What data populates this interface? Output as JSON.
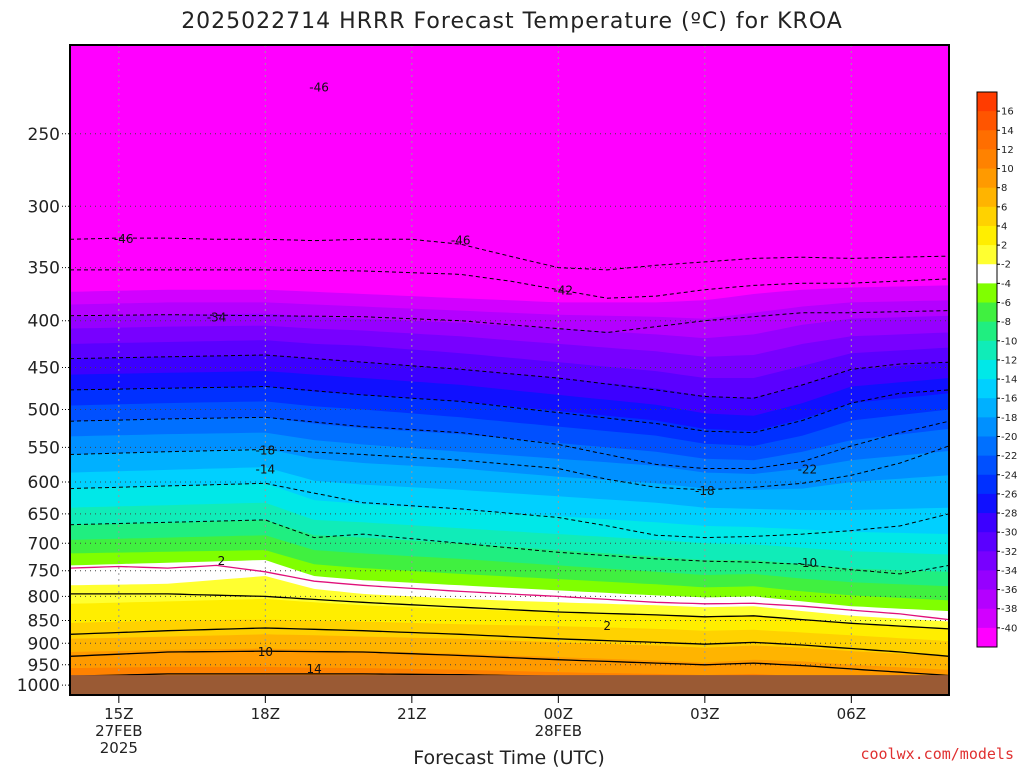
{
  "chart_data": {
    "type": "heatmap",
    "title": "2025022714 HRRR Forecast Temperature (ºC) for KROA",
    "xlabel": "Forecast Time (UTC)",
    "ylabel": "",
    "credit": "coolwx.com/models",
    "x_ticks": [
      {
        "hour": 15,
        "lines": [
          "15Z",
          "27FEB",
          "2025"
        ]
      },
      {
        "hour": 18,
        "lines": [
          "18Z"
        ]
      },
      {
        "hour": 21,
        "lines": [
          "21Z"
        ]
      },
      {
        "hour": 24,
        "lines": [
          "00Z",
          "28FEB"
        ]
      },
      {
        "hour": 27,
        "lines": [
          "03Z"
        ]
      },
      {
        "hour": 30,
        "lines": [
          "06Z"
        ]
      }
    ],
    "x_range_hours": [
      14,
      32
    ],
    "y_ticks": [
      250,
      300,
      350,
      400,
      450,
      500,
      550,
      600,
      650,
      700,
      750,
      800,
      850,
      900,
      950,
      1000
    ],
    "y_range_hpa": [
      200,
      1025
    ],
    "y_scale": "log-pressure",
    "ground_level_hpa": 975,
    "colorbar": {
      "levels": [
        16,
        14,
        12,
        10,
        8,
        6,
        4,
        2,
        -2,
        -4,
        -6,
        -8,
        -10,
        -12,
        -14,
        -16,
        -18,
        -20,
        -22,
        -24,
        -26,
        -28,
        -30,
        -32,
        -34,
        -36,
        -38,
        -40
      ],
      "colors": [
        "#ff3c00",
        "#ff5500",
        "#ff6e00",
        "#ff8200",
        "#ff9a00",
        "#ffb400",
        "#ffd200",
        "#ffee00",
        "#ffff30",
        "#ffffff",
        "#80ff00",
        "#40f040",
        "#20ee80",
        "#10ecb8",
        "#00e8e8",
        "#00d0ff",
        "#00b0ff",
        "#0090ff",
        "#0070ff",
        "#0050ff",
        "#0030ff",
        "#1010ff",
        "#3c00ff",
        "#5a00ff",
        "#7800ff",
        "#9600ff",
        "#b400ff",
        "#d200ff",
        "#ff00ff"
      ]
    },
    "profile_hours": [
      14,
      16,
      18,
      19,
      20,
      22,
      24,
      26,
      27,
      28,
      29,
      30,
      32
    ],
    "profile_values_hpa": [
      {
        "temp": 12,
        "p": [
          980,
          980,
          980,
          982,
          983,
          985,
          988,
          992,
          995,
          995,
          1000,
          1005,
          1010
        ]
      },
      {
        "temp": 10,
        "p": [
          958,
          955,
          955,
          957,
          958,
          962,
          968,
          972,
          975,
          972,
          978,
          985,
          995
        ]
      },
      {
        "temp": 8,
        "p": [
          920,
          915,
          912,
          915,
          918,
          924,
          932,
          940,
          945,
          938,
          942,
          950,
          962
        ]
      },
      {
        "temp": 6,
        "p": [
          890,
          885,
          880,
          882,
          885,
          890,
          898,
          905,
          910,
          905,
          910,
          918,
          930
        ]
      },
      {
        "temp": 4,
        "p": [
          855,
          850,
          848,
          850,
          852,
          858,
          862,
          868,
          872,
          870,
          876,
          882,
          895
        ]
      },
      {
        "temp": 2,
        "p": [
          815,
          810,
          805,
          812,
          818,
          826,
          832,
          838,
          842,
          840,
          848,
          856,
          868
        ]
      },
      {
        "temp": -2,
        "p": [
          778,
          775,
          760,
          785,
          795,
          805,
          812,
          818,
          822,
          820,
          830,
          840,
          852
        ]
      },
      {
        "temp": -4,
        "p": [
          740,
          735,
          730,
          760,
          768,
          778,
          788,
          798,
          802,
          800,
          810,
          820,
          830
        ]
      },
      {
        "temp": -6,
        "p": [
          718,
          715,
          712,
          738,
          745,
          756,
          766,
          776,
          782,
          780,
          790,
          798,
          808
        ]
      },
      {
        "temp": -8,
        "p": [
          694,
          690,
          686,
          712,
          718,
          728,
          740,
          752,
          758,
          756,
          765,
          772,
          780
        ]
      },
      {
        "temp": -10,
        "p": [
          668,
          665,
          660,
          686,
          690,
          700,
          712,
          724,
          730,
          730,
          738,
          746,
          752
        ]
      },
      {
        "temp": -12,
        "p": [
          640,
          636,
          632,
          660,
          664,
          674,
          684,
          694,
          700,
          702,
          708,
          714,
          720
        ]
      },
      {
        "temp": -14,
        "p": [
          610,
          606,
          602,
          628,
          634,
          644,
          654,
          664,
          670,
          672,
          676,
          680,
          684
        ]
      },
      {
        "temp": -16,
        "p": [
          586,
          582,
          578,
          598,
          604,
          612,
          622,
          632,
          640,
          642,
          644,
          644,
          640
        ]
      },
      {
        "temp": -18,
        "p": [
          560,
          556,
          552,
          566,
          572,
          580,
          592,
          602,
          610,
          612,
          610,
          600,
          590
        ]
      },
      {
        "temp": -20,
        "p": [
          535,
          532,
          530,
          540,
          546,
          556,
          566,
          576,
          586,
          588,
          580,
          568,
          555
        ]
      },
      {
        "temp": -22,
        "p": [
          515,
          512,
          510,
          518,
          524,
          532,
          544,
          556,
          566,
          568,
          556,
          540,
          525
        ]
      },
      {
        "temp": -24,
        "p": [
          495,
          492,
          490,
          496,
          500,
          510,
          522,
          534,
          545,
          548,
          534,
          514,
          500
        ]
      },
      {
        "temp": -26,
        "p": [
          476,
          474,
          472,
          478,
          482,
          490,
          502,
          514,
          525,
          528,
          512,
          492,
          480
        ]
      },
      {
        "temp": -28,
        "p": [
          458,
          456,
          454,
          458,
          462,
          470,
          482,
          494,
          505,
          508,
          492,
          472,
          462
        ]
      },
      {
        "temp": -30,
        "p": [
          440,
          438,
          436,
          440,
          444,
          452,
          462,
          474,
          484,
          486,
          470,
          452,
          444
        ]
      },
      {
        "temp": -32,
        "p": [
          424,
          422,
          420,
          424,
          426,
          434,
          444,
          454,
          462,
          462,
          448,
          434,
          428
        ]
      },
      {
        "temp": -34,
        "p": [
          408,
          406,
          405,
          408,
          410,
          416,
          424,
          432,
          438,
          436,
          424,
          416,
          412
        ]
      },
      {
        "temp": -36,
        "p": [
          396,
          394,
          393,
          396,
          398,
          402,
          408,
          414,
          418,
          414,
          404,
          398,
          395
        ]
      },
      {
        "temp": -38,
        "p": [
          384,
          382,
          382,
          384,
          386,
          390,
          394,
          396,
          398,
          392,
          386,
          382,
          380
        ]
      },
      {
        "temp": -40,
        "p": [
          372,
          370,
          370,
          372,
          374,
          378,
          382,
          382,
          380,
          374,
          370,
          368,
          366
        ]
      }
    ],
    "dashed_isotherms": [
      {
        "temp": -46,
        "hours": [
          14,
          15,
          16,
          17,
          18,
          19,
          20,
          21,
          22,
          23,
          24,
          25,
          26,
          27,
          28,
          29,
          30,
          31,
          32
        ],
        "p": [
          326,
          325,
          325,
          326,
          326,
          327,
          326,
          326,
          330,
          340,
          350,
          352,
          348,
          345,
          342,
          341,
          342,
          341,
          340
        ]
      },
      {
        "temp": -42,
        "hours": [
          14,
          16,
          18,
          20,
          22,
          23,
          24,
          25,
          26,
          27,
          28,
          29,
          30,
          31,
          32
        ],
        "p": [
          352,
          352,
          352,
          353,
          356,
          362,
          370,
          378,
          376,
          370,
          366,
          364,
          364,
          362,
          360
        ]
      },
      {
        "temp": -34,
        "hours": [
          14,
          16,
          18,
          20,
          22,
          24,
          25,
          26,
          27,
          28,
          29,
          30,
          31,
          32
        ],
        "p": [
          395,
          394,
          395,
          396,
          400,
          408,
          412,
          406,
          400,
          396,
          392,
          392,
          391,
          390
        ]
      },
      {
        "temp": -18,
        "hours": [
          14,
          16,
          18,
          20,
          22,
          24,
          25,
          26,
          27,
          28,
          29,
          30,
          31,
          32
        ],
        "p": [
          560,
          556,
          553,
          560,
          568,
          580,
          596,
          608,
          612,
          608,
          602,
          590,
          572,
          548
        ]
      },
      {
        "temp": -14,
        "hours": [
          14,
          16,
          18,
          20,
          22,
          24,
          25,
          26,
          27,
          28,
          29,
          30,
          31,
          32
        ],
        "p": [
          610,
          606,
          602,
          632,
          642,
          656,
          670,
          686,
          690,
          688,
          684,
          678,
          670,
          650
        ]
      },
      {
        "temp": -10,
        "hours": [
          14,
          16,
          18,
          19,
          20,
          22,
          24,
          26,
          27,
          28,
          29,
          30,
          31,
          32
        ],
        "p": [
          668,
          664,
          660,
          690,
          684,
          700,
          716,
          728,
          732,
          734,
          738,
          748,
          756,
          740
        ]
      },
      {
        "temp": -22,
        "hours": [
          14,
          16,
          18,
          20,
          22,
          24,
          25,
          26,
          27,
          28,
          29,
          30,
          31,
          32
        ],
        "p": [
          515,
          512,
          510,
          522,
          530,
          546,
          560,
          574,
          580,
          580,
          570,
          548,
          530,
          515
        ]
      },
      {
        "temp": -26,
        "hours": [
          14,
          16,
          18,
          20,
          22,
          24,
          26,
          27,
          28,
          29,
          30,
          31,
          32
        ],
        "p": [
          476,
          474,
          472,
          482,
          490,
          504,
          518,
          528,
          530,
          514,
          492,
          480,
          476
        ]
      },
      {
        "temp": -30,
        "hours": [
          14,
          16,
          18,
          20,
          22,
          24,
          26,
          27,
          28,
          29,
          30,
          31,
          32
        ],
        "p": [
          440,
          438,
          436,
          444,
          452,
          462,
          476,
          484,
          486,
          470,
          452,
          446,
          444
        ]
      }
    ],
    "solid_isotherms": [
      {
        "temp": 14,
        "hours": [
          14,
          16,
          18,
          20,
          22,
          24,
          26,
          27,
          28,
          29
        ],
        "p": [
          978,
          972,
          972,
          972,
          974,
          978,
          982,
          985,
          988,
          998
        ]
      },
      {
        "temp": 10,
        "hours": [
          14,
          16,
          18,
          20,
          22,
          24,
          26,
          27,
          28,
          29,
          30,
          31,
          32
        ],
        "p": [
          930,
          920,
          918,
          920,
          928,
          938,
          946,
          950,
          946,
          952,
          960,
          968,
          976
        ]
      },
      {
        "temp": 6,
        "hours": [
          14,
          16,
          18,
          20,
          22,
          24,
          26,
          27,
          28,
          29,
          30,
          31,
          32
        ],
        "p": [
          880,
          872,
          866,
          872,
          880,
          890,
          898,
          902,
          898,
          904,
          912,
          920,
          930
        ]
      },
      {
        "temp": 2,
        "hours": [
          14,
          16,
          18,
          20,
          22,
          24,
          26,
          27,
          28,
          29,
          30,
          31,
          32
        ],
        "p": [
          795,
          795,
          800,
          812,
          822,
          832,
          838,
          842,
          840,
          848,
          856,
          862,
          868
        ]
      }
    ],
    "freezing_line": {
      "temp": 0,
      "hours": [
        14,
        15,
        16,
        17,
        18,
        19,
        20,
        22,
        24,
        26,
        27,
        28,
        29,
        30,
        31,
        32
      ],
      "p": [
        745,
        742,
        745,
        740,
        752,
        770,
        778,
        790,
        800,
        812,
        815,
        814,
        820,
        828,
        836,
        848
      ]
    },
    "contour_labels": [
      {
        "text": "-46",
        "hour": 15.1,
        "p": 325
      },
      {
        "text": "-46",
        "hour": 19.1,
        "p": 222
      },
      {
        "text": "-46",
        "hour": 22.0,
        "p": 326
      },
      {
        "text": "-42",
        "hour": 24.1,
        "p": 370
      },
      {
        "text": "-34",
        "hour": 17.0,
        "p": 396
      },
      {
        "text": "-18",
        "hour": 18.0,
        "p": 553
      },
      {
        "text": "-14",
        "hour": 18.0,
        "p": 580
      },
      {
        "text": "-22",
        "hour": 29.1,
        "p": 580
      },
      {
        "text": "-18",
        "hour": 27.0,
        "p": 612
      },
      {
        "text": "-10",
        "hour": 29.1,
        "p": 734
      },
      {
        "text": "2",
        "hour": 17.1,
        "p": 730
      },
      {
        "text": "2",
        "hour": 25.0,
        "p": 860
      },
      {
        "text": "10",
        "hour": 18.0,
        "p": 918
      },
      {
        "text": "14",
        "hour": 19.0,
        "p": 958
      }
    ]
  }
}
